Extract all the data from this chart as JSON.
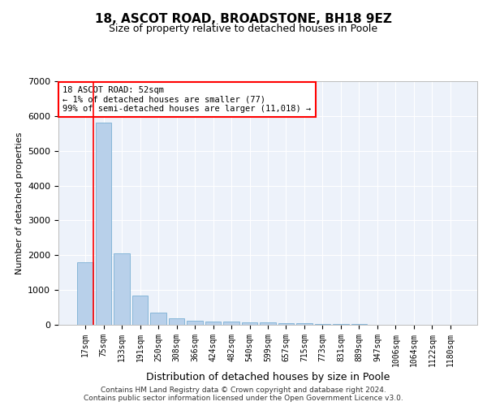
{
  "title1": "18, ASCOT ROAD, BROADSTONE, BH18 9EZ",
  "title2": "Size of property relative to detached houses in Poole",
  "xlabel": "Distribution of detached houses by size in Poole",
  "ylabel": "Number of detached properties",
  "bar_labels": [
    "17sqm",
    "75sqm",
    "133sqm",
    "191sqm",
    "250sqm",
    "308sqm",
    "366sqm",
    "424sqm",
    "482sqm",
    "540sqm",
    "599sqm",
    "657sqm",
    "715sqm",
    "773sqm",
    "831sqm",
    "889sqm",
    "947sqm",
    "1006sqm",
    "1064sqm",
    "1122sqm",
    "1180sqm"
  ],
  "bar_values": [
    1800,
    5800,
    2050,
    830,
    340,
    190,
    120,
    100,
    100,
    70,
    60,
    50,
    40,
    30,
    20,
    15,
    10,
    10,
    5,
    5,
    5
  ],
  "bar_color": "#b8d0ea",
  "bar_edgecolor": "#7aafd4",
  "ylim": [
    0,
    7000
  ],
  "yticks": [
    0,
    1000,
    2000,
    3000,
    4000,
    5000,
    6000,
    7000
  ],
  "bg_color": "#edf2fa",
  "annotation_box_text": "18 ASCOT ROAD: 52sqm\n← 1% of detached houses are smaller (77)\n99% of semi-detached houses are larger (11,018) →",
  "red_line_x": 0.43,
  "footer_text": "Contains HM Land Registry data © Crown copyright and database right 2024.\nContains public sector information licensed under the Open Government Licence v3.0.",
  "title1_fontsize": 11,
  "title2_fontsize": 9,
  "ylabel_fontsize": 8,
  "xlabel_fontsize": 9,
  "tick_fontsize": 7,
  "ytick_fontsize": 8
}
